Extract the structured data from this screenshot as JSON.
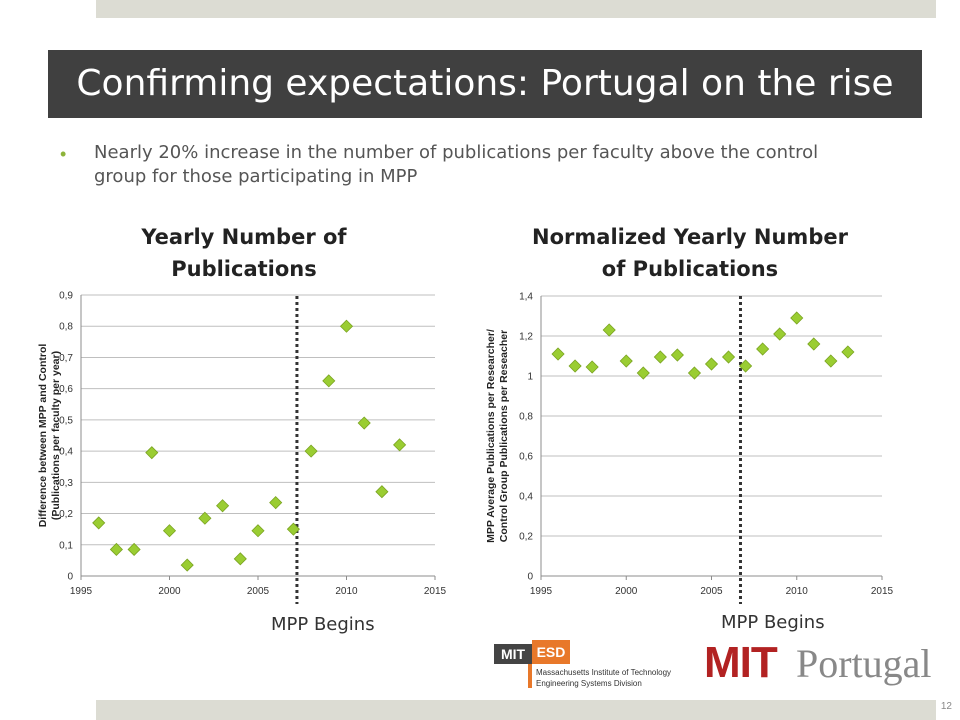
{
  "slide": {
    "title": "Confirming expectations: Portugal on the rise",
    "bullet": "Nearly 20% increase in the number of publications per faculty above the control group for those participating in MPP",
    "page_number": "12",
    "bar_color": "#dcdcd3",
    "title_band_color": "#404040",
    "accent_color": "#8db33a"
  },
  "logos": {
    "esd_badge_left": "MIT",
    "esd_badge_right": "ESD",
    "esd_line1": "Massachusetts Institute of Technology",
    "esd_line2": "Engineering Systems Division",
    "mit_portugal_mit": "MIT",
    "mit_portugal_word": "Portugal"
  },
  "chart_data": [
    {
      "type": "scatter",
      "title": "Yearly Number of Publications",
      "ylabel": "Difference between MPP and Control (Publications per faculty per year)",
      "ylabel_lines": [
        "Difference between MPP and Control",
        "(Publications per faculty per year)"
      ],
      "xlabel": "",
      "xlim": [
        1995,
        2015
      ],
      "ylim": [
        0,
        0.9
      ],
      "x_ticks": [
        "1995",
        "2000",
        "2005",
        "2010",
        "2015"
      ],
      "y_ticks": [
        "0",
        "0,1",
        "0,2",
        "0,3",
        "0,4",
        "0,5",
        "0,6",
        "0,7",
        "0,8",
        "0,9"
      ],
      "grid": true,
      "marker": "diamond",
      "marker_color": "#9acd32",
      "x": [
        1996,
        1997,
        1998,
        1999,
        2000,
        2001,
        2002,
        2003,
        2004,
        2005,
        2006,
        2007,
        2008,
        2009,
        2010,
        2011,
        2012,
        2013
      ],
      "y": [
        0.17,
        0.085,
        0.085,
        0.395,
        0.145,
        0.035,
        0.185,
        0.225,
        0.055,
        0.145,
        0.235,
        0.15,
        0.4,
        0.625,
        0.8,
        0.49,
        0.27,
        0.42
      ],
      "marker_line": {
        "x": 2007.2,
        "label": "MPP Begins"
      }
    },
    {
      "type": "scatter",
      "title": "Normalized Yearly Number of Publications",
      "ylabel": "MPP Average Publications per Researcher/ Control Group Publications per Reseacher",
      "ylabel_lines": [
        "MPP Average Publications per Researcher/",
        "Control Group Publications per Reseacher"
      ],
      "xlabel": "",
      "xlim": [
        1995,
        2015
      ],
      "ylim": [
        0,
        1.4
      ],
      "x_ticks": [
        "1995",
        "2000",
        "2005",
        "2010",
        "2015"
      ],
      "y_ticks": [
        "0",
        "0,2",
        "0,4",
        "0,6",
        "0,8",
        "1",
        "1,2",
        "1,4"
      ],
      "grid": true,
      "marker": "diamond",
      "marker_color": "#9acd32",
      "x": [
        1996,
        1997,
        1998,
        1999,
        2000,
        2001,
        2002,
        2003,
        2004,
        2005,
        2006,
        2007,
        2008,
        2009,
        2010,
        2011,
        2012,
        2013
      ],
      "y": [
        1.11,
        1.05,
        1.045,
        1.23,
        1.075,
        1.015,
        1.095,
        1.105,
        1.015,
        1.06,
        1.095,
        1.05,
        1.135,
        1.21,
        1.29,
        1.16,
        1.075,
        1.12
      ],
      "marker_line": {
        "x": 2006.7,
        "label": "MPP Begins"
      }
    }
  ]
}
